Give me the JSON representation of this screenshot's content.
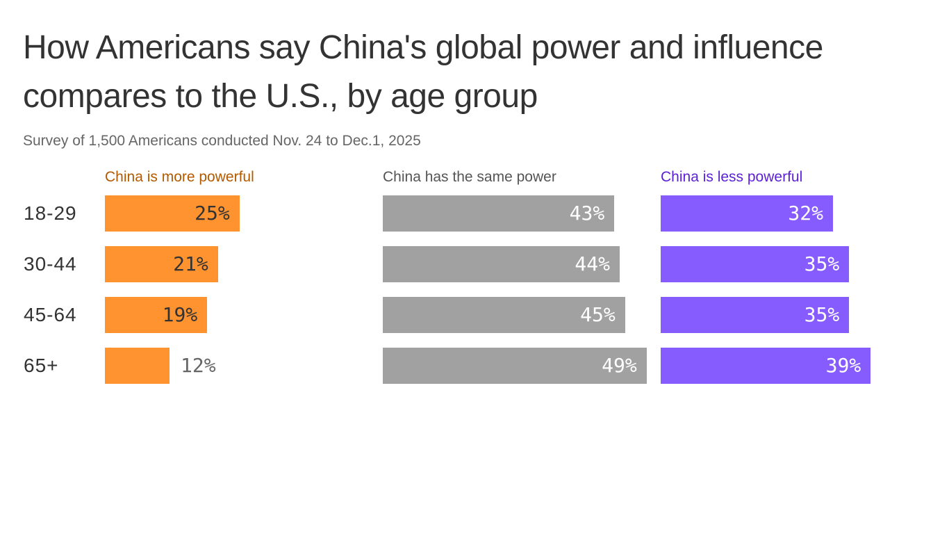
{
  "title": "How Americans say China's global power and influence compares to the U.S., by age group",
  "subtitle": "Survey of 1,500 Americans conducted Nov. 24 to Dec.1, 2025",
  "chart_data": {
    "type": "bar",
    "orientation": "horizontal",
    "layout": "small-multiples",
    "categories": [
      "18-29",
      "30-44",
      "45-64",
      "65+"
    ],
    "series": [
      {
        "name": "China is more powerful",
        "values": [
          25,
          21,
          19,
          12
        ],
        "color": "#ff9330",
        "label_color": "#b35900",
        "value_color": "#333333"
      },
      {
        "name": "China has the same power",
        "values": [
          43,
          44,
          45,
          49
        ],
        "color": "#a0a1a0",
        "label_color": "#555555",
        "value_color": "#ffffff"
      },
      {
        "name": "China is less powerful",
        "values": [
          32,
          35,
          35,
          39
        ],
        "color": "#875cff",
        "label_color": "#5a1fd6",
        "value_color": "#ffffff"
      }
    ],
    "value_format": "%",
    "grid": false
  }
}
